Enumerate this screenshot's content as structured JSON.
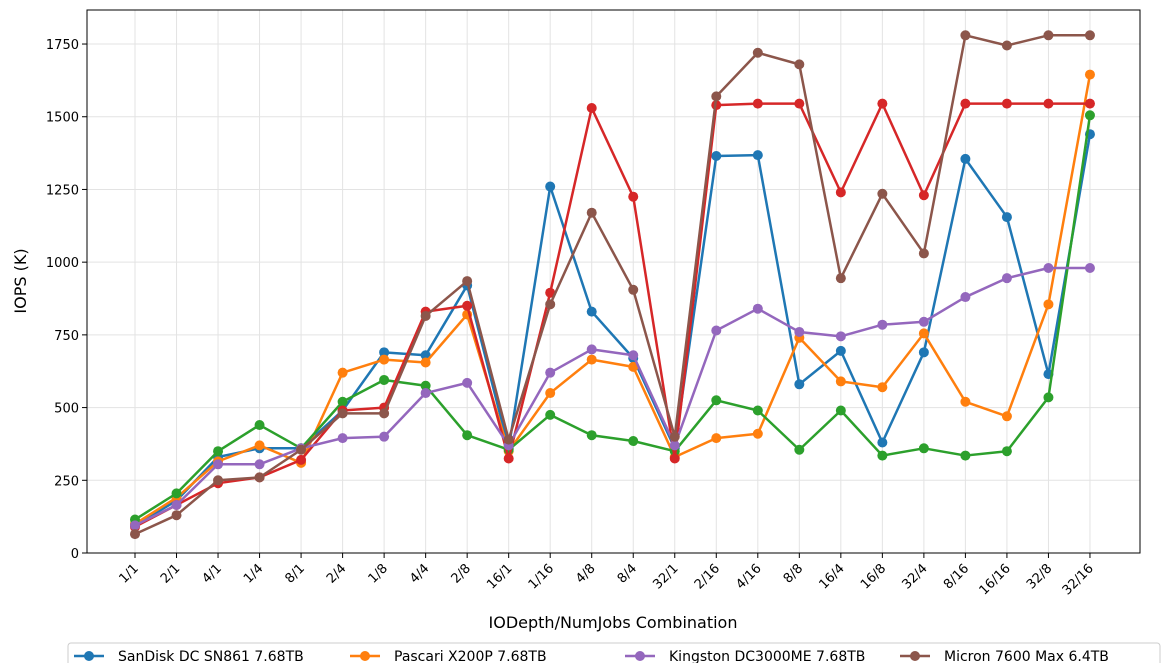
{
  "chart_data": {
    "type": "line",
    "title": "",
    "xlabel": "IODepth/NumJobs Combination",
    "ylabel": "IOPS (K)",
    "ylim": [
      0,
      1867
    ],
    "yticks": [
      0,
      250,
      500,
      750,
      1000,
      1250,
      1500,
      1750
    ],
    "grid": true,
    "legend_placement": "bottom",
    "categories": [
      "1/1",
      "2/1",
      "4/1",
      "1/4",
      "8/1",
      "2/4",
      "1/8",
      "4/4",
      "2/8",
      "16/1",
      "1/16",
      "4/8",
      "8/4",
      "32/1",
      "2/16",
      "4/16",
      "8/8",
      "16/4",
      "16/8",
      "32/4",
      "8/16",
      "16/16",
      "32/8",
      "32/16"
    ],
    "series": [
      {
        "name": "SanDisk DC SN861 7.68TB",
        "color": "#1f77b4",
        "in_legend": true,
        "values": [
          95,
          180,
          330,
          360,
          360,
          490,
          690,
          680,
          920,
          360,
          1260,
          830,
          670,
          360,
          1365,
          1368,
          580,
          695,
          380,
          690,
          1355,
          1155,
          615,
          1440
        ]
      },
      {
        "name": "Pascari X200P 7.68TB",
        "color": "#ff7f0e",
        "in_legend": true,
        "values": [
          100,
          190,
          315,
          370,
          310,
          620,
          665,
          655,
          820,
          350,
          550,
          665,
          640,
          330,
          395,
          410,
          740,
          590,
          570,
          755,
          520,
          470,
          855,
          1645
        ]
      },
      {
        "name": "",
        "color": "#2ca02c",
        "in_legend": false,
        "values": [
          115,
          205,
          350,
          440,
          360,
          520,
          595,
          575,
          405,
          355,
          475,
          405,
          385,
          350,
          525,
          490,
          355,
          490,
          335,
          360,
          335,
          350,
          535,
          1505
        ]
      },
      {
        "name": "",
        "color": "#d62728",
        "in_legend": false,
        "values": [
          90,
          165,
          240,
          260,
          320,
          490,
          500,
          830,
          850,
          325,
          895,
          1530,
          1225,
          325,
          1540,
          1545,
          1545,
          1240,
          1545,
          1230,
          1545,
          1545,
          1545,
          1545
        ]
      },
      {
        "name": "Kingston DC3000ME 7.68TB",
        "color": "#9467bd",
        "in_legend": true,
        "values": [
          95,
          165,
          305,
          305,
          360,
          395,
          400,
          550,
          585,
          370,
          620,
          700,
          680,
          370,
          765,
          840,
          760,
          745,
          785,
          795,
          880,
          945,
          980,
          980
        ]
      },
      {
        "name": "Micron 7600 Max 6.4TB",
        "color": "#8c564b",
        "in_legend": true,
        "values": [
          65,
          130,
          250,
          260,
          355,
          480,
          480,
          815,
          935,
          390,
          855,
          1170,
          905,
          400,
          1570,
          1720,
          1680,
          945,
          1235,
          1030,
          1780,
          1745,
          1780,
          1780
        ]
      }
    ]
  }
}
